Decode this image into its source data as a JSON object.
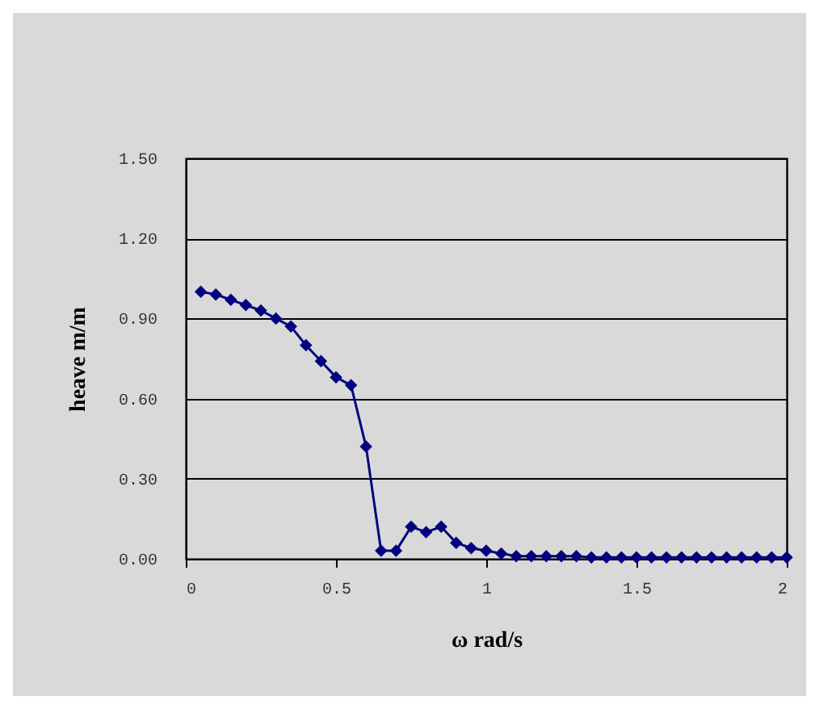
{
  "chart_data": {
    "type": "line",
    "xlabel": "ω rad/s",
    "ylabel": "heave m/m",
    "x": [
      0.05,
      0.1,
      0.15,
      0.2,
      0.25,
      0.3,
      0.35,
      0.4,
      0.45,
      0.5,
      0.55,
      0.6,
      0.65,
      0.7,
      0.75,
      0.8,
      0.85,
      0.9,
      0.95,
      1.0,
      1.05,
      1.1,
      1.15,
      1.2,
      1.25,
      1.3,
      1.35,
      1.4,
      1.45,
      1.5,
      1.55,
      1.6,
      1.65,
      1.7,
      1.75,
      1.8,
      1.85,
      1.9,
      1.95,
      2.0
    ],
    "series": [
      {
        "color": "#000080",
        "values": [
          1.0,
          0.99,
          0.97,
          0.95,
          0.93,
          0.9,
          0.87,
          0.8,
          0.74,
          0.68,
          0.65,
          0.42,
          0.03,
          0.03,
          0.12,
          0.1,
          0.12,
          0.06,
          0.04,
          0.03,
          0.02,
          0.01,
          0.01,
          0.01,
          0.01,
          0.01,
          0.005,
          0.005,
          0.005,
          0.005,
          0.005,
          0.005,
          0.005,
          0.005,
          0.005,
          0.005,
          0.005,
          0.005,
          0.005,
          0.005
        ]
      }
    ],
    "xlim": [
      0,
      2
    ],
    "xticks": [
      0,
      0.5,
      1,
      1.5,
      2
    ],
    "ylim": [
      0,
      1.5
    ],
    "yticks": [
      {
        "value": 0,
        "label": "0.00"
      },
      {
        "value": 0.3,
        "label": "0.30"
      },
      {
        "value": 0.6,
        "label": "0.60"
      },
      {
        "value": 0.9,
        "label": "0.90"
      },
      {
        "value": 1.2,
        "label": "1.20"
      },
      {
        "value": 1.5,
        "label": "1.50"
      }
    ],
    "grid": "y",
    "marker": "diamond",
    "line_style": "solid",
    "legend": false
  }
}
